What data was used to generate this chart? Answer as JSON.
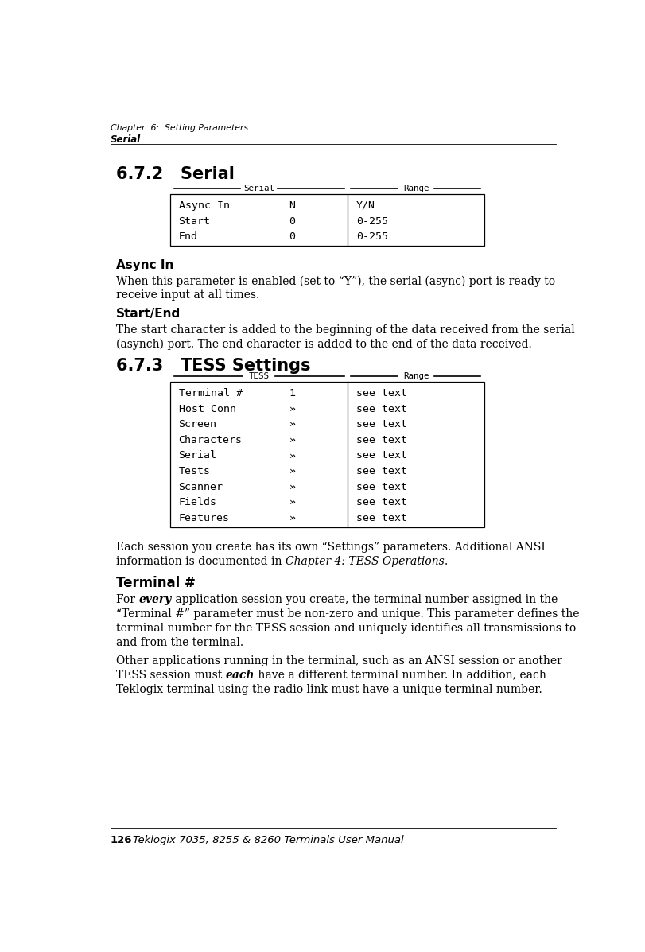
{
  "bg_color": "#ffffff",
  "page_width": 8.11,
  "page_height": 11.97,
  "header_line1": "Chapter  6:  Setting Parameters",
  "header_line2": "Serial",
  "section1_title": "6.7.2   Serial",
  "serial_table": {
    "col1_label": "Serial",
    "col2_label": "Range",
    "rows": [
      [
        "Async In",
        "N",
        "Y/N"
      ],
      [
        "Start",
        "0",
        "0-255"
      ],
      [
        "End",
        "0",
        "0-255"
      ]
    ]
  },
  "async_in_heading": "Async In",
  "async_in_body1": "When this parameter is enabled (set to “Y”), the serial (async) port is ready to",
  "async_in_body2": "receive input at all times.",
  "startend_heading": "Start/End",
  "startend_body1": "The start character is added to the beginning of the data received from the serial",
  "startend_body2": "(asynch) port. The end character is added to the end of the data received.",
  "section2_title": "6.7.3   TESS Settings",
  "tess_table": {
    "col1_label": "TESS",
    "col2_label": "Range",
    "rows": [
      [
        "Terminal #",
        "1",
        "see text"
      ],
      [
        "Host Conn",
        "»",
        "see text"
      ],
      [
        "Screen",
        "»",
        "see text"
      ],
      [
        "Characters",
        "»",
        "see text"
      ],
      [
        "Serial",
        "»",
        "see text"
      ],
      [
        "Tests",
        "»",
        "see text"
      ],
      [
        "Scanner",
        "»",
        "see text"
      ],
      [
        "Fields",
        "»",
        "see text"
      ],
      [
        "Features",
        "»",
        "see text"
      ]
    ]
  },
  "tess_intro1": "Each session you create has its own “Settings” parameters. Additional ANSI",
  "tess_intro2_normal": "information is documented in ",
  "tess_intro2_italic": "Chapter 4: TESS Operations",
  "tess_intro2_end": ".",
  "terminal_heading": "Terminal #",
  "para1_pre": "For ",
  "para1_bold": "every",
  "para1_post": " application session you create, the terminal number assigned in the",
  "para1_line2": "“Terminal #” parameter must be non-zero and unique. This parameter defines the",
  "para1_line3": "terminal number for the TESS session and uniquely identifies all transmissions to",
  "para1_line4": "and from the terminal.",
  "para2_line1": "Other applications running in the terminal, such as an ANSI session or another",
  "para2_pre": "TESS session must ",
  "para2_bold": "each",
  "para2_post": " have a different terminal number. In addition, each",
  "para2_line3": "Teklogix terminal using the radio link must have a unique terminal number.",
  "footer_page": "126",
  "footer_text": "Teklogix 7035, 8255 & 8260 Terminals User Manual"
}
